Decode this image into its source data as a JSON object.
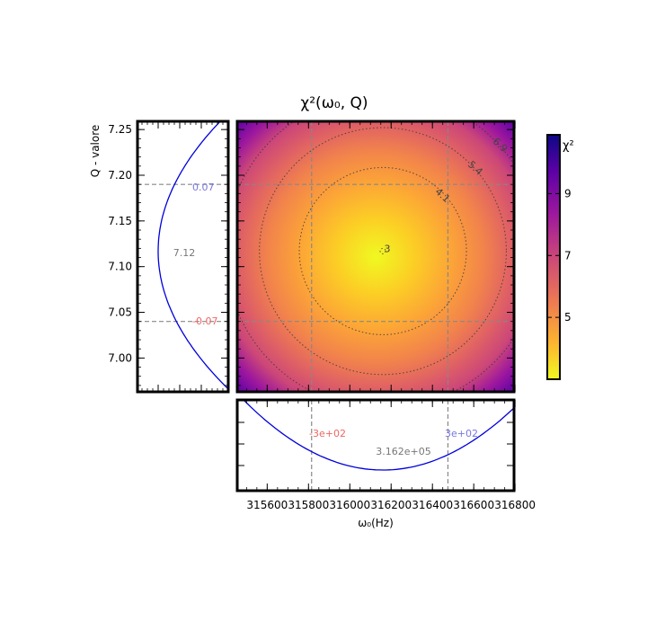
{
  "chart_data": {
    "type": "heatmap",
    "title": "χ²(ω₀, Q)",
    "xlabel": "ω₀(Hz)",
    "ylabel": "Q - valore",
    "colorbar": {
      "label": "χ²",
      "ticks": [
        5,
        7,
        9
      ],
      "range": [
        3.0,
        10.9
      ],
      "colormap": "plasma_r",
      "colors_hex": [
        "#f0f921",
        "#fdb42f",
        "#ed7953",
        "#cc4778",
        "#9c179e",
        "#5c01a6",
        "#0d0887"
      ]
    },
    "x_ticks": [
      315600,
      315800,
      316000,
      316200,
      316400,
      316600,
      316800
    ],
    "y_ticks": [
      7.0,
      7.05,
      7.1,
      7.15,
      7.2,
      7.25
    ],
    "x_range": [
      315455,
      316795
    ],
    "y_range": [
      6.963,
      7.259
    ],
    "best_fit": {
      "omega0": 316160,
      "Q": 7.117,
      "omega0_label": "3.162e+05",
      "Q_label": "7.12"
    },
    "uncertainty": {
      "omega0_minus": "-3e+02",
      "omega0_plus": "3e+02",
      "Q_minus": "-0.07",
      "Q_plus": "0.07"
    },
    "contours": [
      {
        "level": 3.0,
        "label": "3"
      },
      {
        "level": 4.1,
        "label": "4.1"
      },
      {
        "level": 5.4,
        "label": "5.4"
      },
      {
        "level": 6.9,
        "label": "6.9"
      }
    ],
    "dashed_lines": {
      "omega0": [
        315815,
        316475
      ],
      "Q": [
        7.04,
        7.19
      ]
    },
    "profile_curves": "parabolic chi² profiles along ω₀ (bottom) and Q (left)"
  },
  "colors": {
    "curve": "#0000dd",
    "plus_label": "#7777dd",
    "minus_label": "#ee6666",
    "center_label": "#777777",
    "dashed": "#888888"
  }
}
